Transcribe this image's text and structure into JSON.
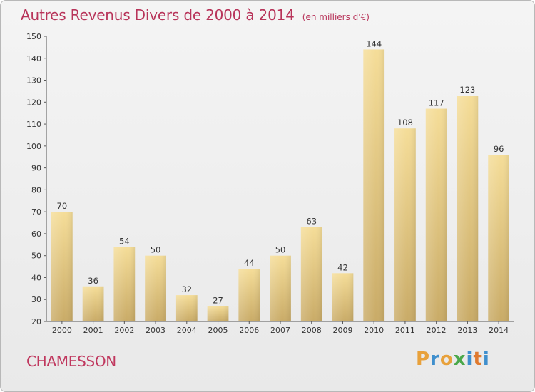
{
  "chart_data": {
    "type": "bar",
    "title": "Autres Revenus Divers de 2000 à 2014",
    "subtitle": "(en milliers d'€)",
    "categories": [
      "2000",
      "2001",
      "2002",
      "2003",
      "2004",
      "2005",
      "2006",
      "2007",
      "2008",
      "2009",
      "2010",
      "2011",
      "2012",
      "2013",
      "2014"
    ],
    "values": [
      70,
      36,
      54,
      50,
      32,
      27,
      44,
      50,
      63,
      42,
      144,
      108,
      117,
      123,
      96
    ],
    "data_labels": [
      "70",
      "36",
      "54",
      "50",
      "32",
      "27",
      "44",
      "50",
      "63",
      "42",
      "144",
      "108",
      "117",
      "123",
      "96"
    ],
    "ylim": [
      20,
      150
    ],
    "yticks": [
      20,
      30,
      40,
      50,
      60,
      70,
      80,
      90,
      100,
      110,
      120,
      130,
      140,
      150
    ],
    "ytick_labels": [
      "20",
      "30",
      "40",
      "50",
      "60",
      "70",
      "80",
      "90",
      "100",
      "110",
      "120",
      "130",
      "140",
      "150"
    ],
    "grid": false,
    "bar_color": "#e9cf86",
    "bar_color_dark": "#c8a865"
  },
  "footer": {
    "commune": "CHAMESSON",
    "brand_letters": [
      "P",
      "r",
      "o",
      "x",
      "i",
      "t",
      "i"
    ],
    "brand_colors": [
      "#e8a13b",
      "#3f8fcd",
      "#e8a13b",
      "#4aa84a",
      "#3f8fcd",
      "#e07a2f",
      "#3f8fcd"
    ]
  }
}
